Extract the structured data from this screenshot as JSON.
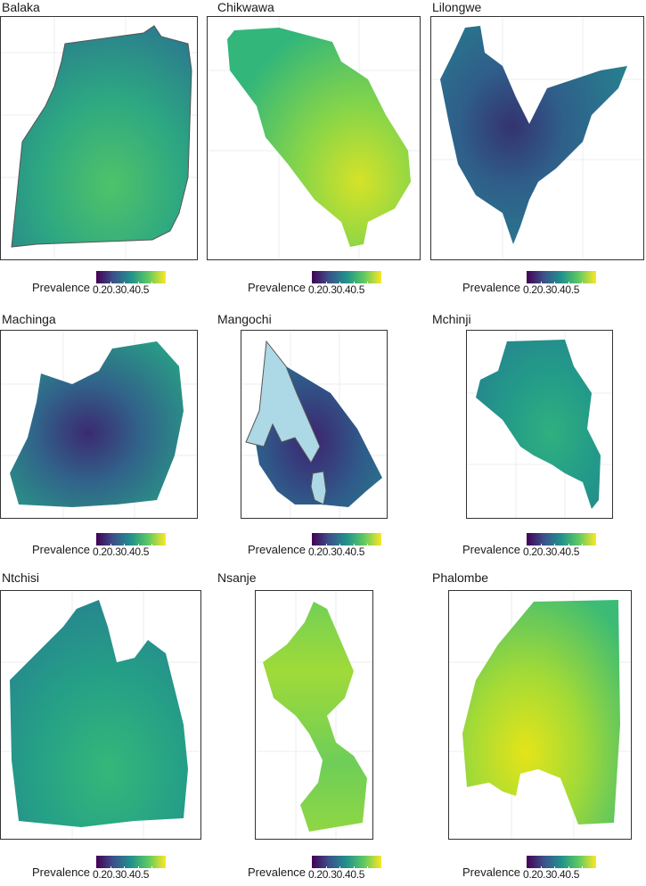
{
  "legend": {
    "label": "Prevalence",
    "ticks": [
      "0.2",
      "0.3",
      "0.4",
      "0.5"
    ],
    "colors": [
      "#440154",
      "#3b528b",
      "#21918c",
      "#5ec962",
      "#fde725"
    ]
  },
  "panels": [
    {
      "title": "Balaka"
    },
    {
      "title": "Chikwawa"
    },
    {
      "title": "Lilongwe"
    },
    {
      "title": "Machinga"
    },
    {
      "title": "Mangochi"
    },
    {
      "title": "Mchinji"
    },
    {
      "title": "Ntchisi"
    },
    {
      "title": "Nsanje"
    },
    {
      "title": "Phalombe"
    }
  ],
  "lake_color": "#add8e6"
}
